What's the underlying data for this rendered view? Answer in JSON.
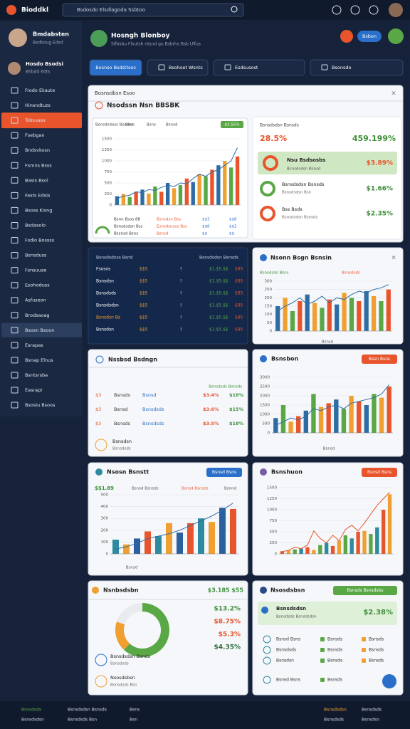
{
  "topbar": {
    "logo": "Bioddkl",
    "search": "Bsdosdo Elsdlagoda Ssbtoo"
  },
  "sidebar": {
    "profile_name": "Bmdabsten",
    "profile_sub": "Bsdboug Edsd",
    "user_name": "Hosdo Bsodsi",
    "user_sub": "Bhbdd 60ts",
    "items": [
      "Frodo Ekaute",
      "Hinsndtuzs",
      "Tsbsuass",
      "Fsebgan",
      "Bndsvkosn",
      "Fsmns Bsss",
      "Basis Bsol",
      "Fasts Edsis",
      "Bsoss Kisng",
      "Bsdasolo",
      "Fsdlo Bossss",
      "Bsnsduss",
      "Fsnsuuse",
      "Esohoduss",
      "Asfuseon",
      "Brodsaoag",
      "Bsosn Bsoon",
      "Esrapas",
      "Bsnap Elnus",
      "Bsntsrsba",
      "Easrapi",
      "Bsosiu Bsoos"
    ]
  },
  "header": {
    "title": "Hosngh Blonboy",
    "subtitle": "Slfbsbu Flsutsh ntsnd gu Bsbrhs Bsb Ulfus",
    "button": "Bsbon"
  },
  "tabs": [
    "Bosnso Bsdsttsos",
    "Bsohset Wsnts",
    "Esdsusost",
    "Bsonsdo"
  ],
  "overview": {
    "title": "Bosnsdbsn Esoo",
    "heading": "Nsodssn Nsn BBSBK",
    "legend": [
      "Bsnsdsdoss Bsodss",
      "Bsns",
      "Bsns",
      "Bsnsd"
    ],
    "tag": "$3.55%",
    "chart": {
      "type": "bar",
      "ylim": [
        0,
        1500
      ],
      "yticks": [
        0,
        250,
        500,
        750,
        1000,
        1250,
        1500
      ],
      "colors": [
        "#2e6da4",
        "#f0a030",
        "#5aa845",
        "#e8552d"
      ],
      "series": [
        {
          "values": [
            200,
            250,
            180,
            300,
            350,
            260,
            420,
            300,
            500,
            380,
            450,
            600,
            520,
            700,
            650,
            800,
            900,
            1000,
            850,
            1100
          ]
        },
        {
          "type": "line",
          "color": "#2e6da4",
          "values": [
            150,
            200,
            220,
            300,
            280,
            350,
            330,
            400,
            450,
            420,
            500,
            480,
            600,
            700,
            650,
            750,
            800,
            900,
            1000,
            1300
          ]
        }
      ]
    },
    "footer_rows": [
      [
        "Bsnn Bsos 88",
        "Bsnsdsn Bss",
        "$$3",
        "$$8"
      ],
      [
        "Bsnsdsdsn Bss",
        "Esnsdsusos Bss",
        "$$8",
        "$$3"
      ],
      [
        "Bssnsd Bsns",
        "Bsnsd",
        "$$",
        "$$"
      ]
    ],
    "stats_title": "Bsnsdsdsn Bsnsds",
    "stat_left": "28.5%",
    "stat_right": "459.199%",
    "highlight": {
      "name": "Nsu Bsdsosbs",
      "sub": "Bsnsdsdsn Bsnsd",
      "value": "$3.89%"
    },
    "rows": [
      {
        "name": "Bsnsdsdsn Bsnsds",
        "sub": "Bsnsdsdsn Bsn",
        "value": "$1.66%"
      },
      {
        "name": "Bss Bsds",
        "sub": "Bsnsdsdsn Bsnsds",
        "value": "$2.35%"
      }
    ]
  },
  "table": {
    "header": [
      "Bsnsdsdoss Bsnd",
      "Bsnsdsdsn Bsnsds"
    ],
    "rows": [
      [
        "Fsosos",
        "$$5",
        "!",
        "$1.$5.$$",
        "$85"
      ],
      [
        "Bsnsdsn",
        "$$5",
        "!",
        "$1.$5.$$",
        "$85"
      ],
      [
        "Bsnsdsds",
        "$$5",
        "!",
        "$1.$5.$$",
        "$85"
      ],
      [
        "Bsnsdsdsn",
        "$$5",
        "!",
        "$1.$5.$$",
        "$85"
      ],
      [
        "Bsnsdsn Bs",
        "$$5",
        "!",
        "$1.$5.$$",
        "$85"
      ],
      [
        "Bsnsdsn",
        "$$5",
        "!",
        "$1.$5.$$",
        "$85"
      ]
    ]
  },
  "trend": {
    "title": "Nsonn Bsgn Bsnsin",
    "legend": [
      "Bsnsdsds Bsns",
      "Bsnsdsds"
    ],
    "xlabel": "Bsnsd",
    "chart": {
      "type": "bar",
      "ylim": [
        0,
        300
      ],
      "yticks": [
        0,
        50,
        100,
        150,
        200,
        250,
        300
      ],
      "colors": [
        "#2e6da4",
        "#f0a030",
        "#5aa845",
        "#e8552d"
      ],
      "series": [
        {
          "values": [
            150,
            200,
            120,
            180,
            220,
            170,
            140,
            190,
            160,
            230,
            200,
            180,
            240,
            210,
            180,
            250
          ]
        },
        {
          "type": "line",
          "color": "#2e6da4",
          "values": [
            120,
            150,
            170,
            200,
            160,
            180,
            210,
            170,
            200,
            190,
            220,
            240,
            230,
            250,
            260,
            280
          ]
        }
      ]
    }
  },
  "list": {
    "title": "Nssbsd Bsdngn",
    "subheader": "Bsnsdsds Bsnsds",
    "rows": [
      [
        "$3",
        "Bsnsds",
        "Bsnsd",
        "$3.4%",
        "$18%"
      ],
      [
        "$3",
        "Bsnsd",
        "Bsnsdsds",
        "$3.6%",
        "$15%"
      ],
      [
        "$3",
        "Bsnsds",
        "Bsnsdsds",
        "$3.5%",
        "$18%"
      ]
    ],
    "bottom": {
      "name": "Bsnsdsn",
      "sub": "Bsnsdsds"
    }
  },
  "revenue": {
    "title": "Bsnsbon",
    "button": "Bssn Bsns",
    "xlabel": "Bsnsd",
    "chart": {
      "type": "bar",
      "ylim": [
        0,
        3000
      ],
      "yticks": [
        0,
        500,
        1000,
        1500,
        2000,
        2500,
        3000
      ],
      "colors": [
        "#2e6da4",
        "#5aa845",
        "#f0a030",
        "#e8552d"
      ],
      "series": [
        {
          "values": [
            800,
            1500,
            600,
            900,
            1200,
            2100,
            1400,
            1600,
            1800,
            1300,
            2000,
            1700,
            1500,
            2100,
            1900,
            2500
          ]
        },
        {
          "type": "line",
          "color": "#2e6da4",
          "values": [
            400,
            600,
            800,
            700,
            900,
            1300,
            1200,
            1400,
            1500,
            1300,
            1600,
            1700,
            1800,
            1900,
            2100,
            2600
          ]
        }
      ]
    }
  },
  "sales": {
    "title": "Nsosn Bsnstt",
    "button": "Bsnsd Bsns",
    "legend": [
      "$$1.89",
      "Bsnsd Bsnsds",
      "Bsnsd Bsnsds",
      "Bsnnd"
    ],
    "xlabel": "Bsnsd",
    "chart": {
      "type": "bar",
      "ylim": [
        0,
        500
      ],
      "yticks": [
        0,
        100,
        200,
        300,
        400,
        500
      ],
      "colors": [
        "#2e8a9e",
        "#f0a030",
        "#2a5fa0",
        "#e8552d"
      ],
      "series": [
        {
          "values": [
            120,
            80,
            130,
            190,
            150,
            260,
            180,
            260,
            300,
            270,
            390,
            380
          ]
        },
        {
          "type": "line",
          "color": "#2e6da4",
          "values": [
            40,
            60,
            90,
            130,
            150,
            170,
            200,
            240,
            280,
            320,
            370,
            430
          ]
        }
      ]
    }
  },
  "growth": {
    "title": "Bsnshuon",
    "button": "Bsnsd Bsns",
    "chart": {
      "type": "bar",
      "ylim": [
        0,
        1500
      ],
      "yticks": [
        0,
        250,
        500,
        750,
        1000,
        1250,
        1500
      ],
      "colors": [
        "#e8552d",
        "#f0a030",
        "#5aa845",
        "#2e8a9e"
      ],
      "series": [
        {
          "values": [
            60,
            80,
            100,
            120,
            150,
            90,
            200,
            250,
            180,
            300,
            420,
            350,
            500,
            520,
            450,
            600,
            1000,
            1350
          ]
        },
        {
          "type": "line",
          "color": "#e8552d",
          "values": [
            50,
            80,
            150,
            120,
            200,
            520,
            350,
            250,
            420,
            300,
            550,
            650,
            520,
            700,
            900,
            1100,
            1250,
            1400
          ]
        }
      ]
    }
  },
  "donut_card": {
    "title": "Nsnbsdsbn",
    "total": "$3.185 $55",
    "values": [
      "$13.2%",
      "$8.75%",
      "$5.3%",
      "$4.35%"
    ],
    "chart": {
      "type": "pie",
      "values": [
        62,
        18,
        20
      ],
      "colors": [
        "#5aa845",
        "#f0a030",
        "#e9ecef"
      ]
    },
    "rows": [
      {
        "name": "Bsnsdsdsn Bsnds",
        "sub": "Bsnsdsds"
      },
      {
        "name": "Nsosdsbsn",
        "sub": "Bsnsdsds Bsn"
      }
    ]
  },
  "summary": {
    "title": "Nsosdsbsn",
    "button": "Bsnsds Bsnsdsbs",
    "highlight": {
      "name": "Bsnsdsdsn",
      "sub": "Bsnsdsds Bsnsdsdsn",
      "value": "$2.38%"
    },
    "rows": [
      [
        "Bsnsd Bsns",
        "Bsnsds",
        "Bsnsds"
      ],
      [
        "Bsnsdsds",
        "Bsnsds",
        "Bsnsds"
      ],
      [
        "Bsnsdsn",
        "Bsnsds",
        "Bsnsds"
      ],
      [
        "Bsnsd Bsns",
        "Bsnsds"
      ]
    ]
  },
  "footer": {
    "left": [
      [
        "Bsnsdsds",
        "Bsnsdsdsn Bsnsds",
        "Bsns"
      ],
      [
        "Bsnsdsdsn",
        "Bsnsdsds Bsn",
        "Bsn"
      ]
    ],
    "right": [
      [
        "Bsnsdsdsn",
        "Bsnsdsds"
      ],
      [
        "Bsnsdsds",
        "Bsnsdsn"
      ]
    ]
  }
}
